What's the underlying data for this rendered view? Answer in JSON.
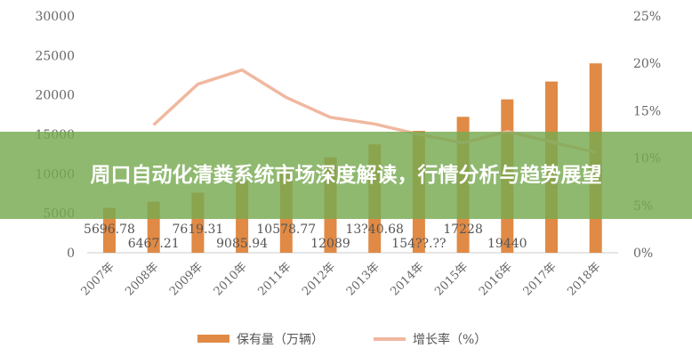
{
  "chart_data": {
    "type": "bar+line",
    "categories": [
      "2007年",
      "2008年",
      "2009年",
      "2010年",
      "2011年",
      "2012年",
      "2013年",
      "2014年",
      "2015年",
      "2016年",
      "2017年",
      "2018年"
    ],
    "series": [
      {
        "name": "保有量（万辆）",
        "type": "bar",
        "axis": "left",
        "color": "#e08a45",
        "values": [
          5696.78,
          6467.21,
          7619.31,
          9085.94,
          10578.77,
          12089,
          13740.68,
          15447.44,
          17228,
          19440,
          21700,
          24000
        ],
        "labels": [
          "5696.78",
          "6467.21",
          "7619.31",
          "9085.94",
          "10578.77",
          "12089",
          "13?40.68",
          "154??.??",
          "17228",
          "19440",
          "",
          ""
        ]
      },
      {
        "name": "增长率（%）",
        "type": "line",
        "axis": "right",
        "color": "#f0b8a0",
        "values": [
          null,
          13.5,
          17.8,
          19.3,
          16.4,
          14.3,
          13.6,
          12.5,
          11.6,
          12.8,
          11.7,
          10.6
        ]
      }
    ],
    "left_ticks": [
      "0",
      "5000",
      "10000",
      "15000",
      "20000",
      "25000",
      "30000"
    ],
    "right_ticks": [
      "0%",
      "5%",
      "10%",
      "15%",
      "20%",
      "25%"
    ],
    "ylim_left": [
      0,
      30000
    ],
    "ylim_right": [
      0,
      25
    ],
    "legend_position": "bottom",
    "grid": false
  },
  "banner": {
    "title": "周口自动化清粪系统市场深度解读，行情分析与趋势展望",
    "color": "#78aa50"
  }
}
